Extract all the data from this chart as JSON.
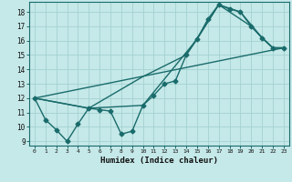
{
  "xlabel": "Humidex (Indice chaleur)",
  "background_color": "#c5e8e8",
  "grid_color": "#9ecece",
  "line_color": "#1a6b6b",
  "marker": "D",
  "markersize": 2.5,
  "linewidth": 1.0,
  "xlim": [
    -0.5,
    23.5
  ],
  "ylim": [
    8.7,
    18.7
  ],
  "xticks": [
    0,
    1,
    2,
    3,
    4,
    5,
    6,
    7,
    8,
    9,
    10,
    11,
    12,
    13,
    14,
    15,
    16,
    17,
    18,
    19,
    20,
    21,
    22,
    23
  ],
  "yticks": [
    9,
    10,
    11,
    12,
    13,
    14,
    15,
    16,
    17,
    18
  ],
  "series_with_markers": {
    "x": [
      0,
      1,
      2,
      3,
      4,
      5,
      6,
      7,
      8,
      9,
      10,
      11,
      12,
      13,
      14,
      15,
      16,
      17,
      18,
      19,
      20,
      21,
      22,
      23
    ],
    "y": [
      12,
      10.5,
      9.8,
      9.0,
      10.2,
      11.3,
      11.2,
      11.1,
      9.5,
      9.7,
      11.5,
      12.2,
      13.0,
      13.2,
      15.0,
      16.1,
      17.5,
      18.5,
      18.2,
      18.0,
      17.0,
      16.2,
      15.5,
      15.5
    ]
  },
  "line1": {
    "x": [
      0,
      5,
      10,
      15,
      17,
      19,
      21,
      22,
      23
    ],
    "y": [
      12,
      11.3,
      11.5,
      16.1,
      18.5,
      18.0,
      16.2,
      15.5,
      15.5
    ]
  },
  "line2": {
    "x": [
      0,
      5,
      10,
      14,
      17,
      20,
      21,
      22,
      23
    ],
    "y": [
      12,
      11.3,
      13.5,
      15.0,
      18.5,
      17.0,
      16.2,
      15.5,
      15.5
    ]
  },
  "line3": {
    "x": [
      0,
      23
    ],
    "y": [
      12,
      15.5
    ]
  }
}
